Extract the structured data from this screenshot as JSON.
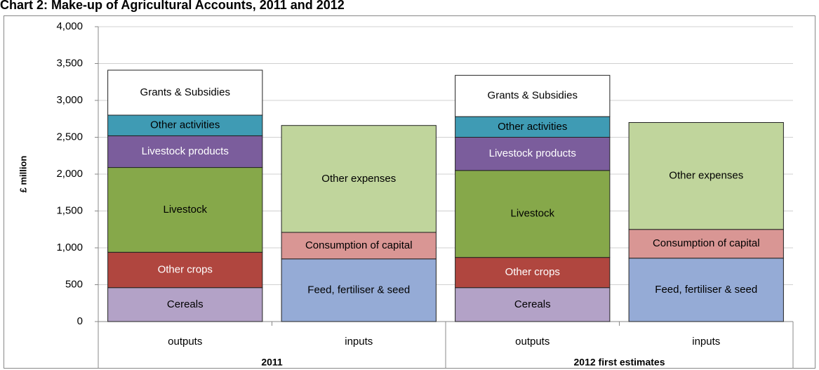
{
  "chart_data": {
    "type": "stacked-bar",
    "title": "Chart 2: Make-up of Agricultural Accounts, 2011 and 2012",
    "y_label": "£ million",
    "categories": [
      "outputs",
      "inputs",
      "outputs",
      "inputs"
    ],
    "groups": [
      "2011",
      "2012 first estimates"
    ],
    "ylim": [
      0,
      4000
    ],
    "yticks": [
      0,
      500,
      {
        "value": 1000,
        "label": "1,000"
      },
      {
        "value": 1500,
        "label": "1,500"
      },
      {
        "value": 2000,
        "label": "2,000"
      },
      {
        "value": 2500,
        "label": "2,500"
      },
      {
        "value": 3000,
        "label": "3,000"
      },
      {
        "value": 3500,
        "label": "3,500"
      },
      {
        "value": 4000,
        "label": "4,000"
      }
    ],
    "grid": true,
    "series": [
      {
        "name": "Cereals",
        "color": "#b3a2c7",
        "text_color": "#000000",
        "values": [
          460,
          null,
          460,
          null
        ]
      },
      {
        "name": "Other crops",
        "color": "#b0463f",
        "text_color": "#ffffff",
        "values": [
          480,
          null,
          410,
          null
        ]
      },
      {
        "name": "Livestock",
        "color": "#86a84a",
        "text_color": "#000000",
        "values": [
          1150,
          null,
          1180,
          null
        ]
      },
      {
        "name": "Livestock products",
        "color": "#7b5d9c",
        "text_color": "#ffffff",
        "values": [
          430,
          null,
          450,
          null
        ]
      },
      {
        "name": "Other activities",
        "color": "#3f9bb4",
        "text_color": "#000000",
        "values": [
          280,
          null,
          280,
          null
        ]
      },
      {
        "name": "Grants & Subsidies",
        "color": "#ffffff",
        "text_color": "#000000",
        "values": [
          610,
          null,
          560,
          null
        ]
      },
      {
        "name": "Feed, fertiliser & seed",
        "color": "#95abd6",
        "text_color": "#000000",
        "values": [
          null,
          850,
          null,
          860
        ]
      },
      {
        "name": "Consumption of capital",
        "color": "#d99694",
        "text_color": "#000000",
        "values": [
          null,
          360,
          null,
          390
        ]
      },
      {
        "name": "Other expenses",
        "color": "#c0d59c",
        "text_color": "#000000",
        "values": [
          null,
          1450,
          null,
          1450
        ]
      }
    ]
  }
}
